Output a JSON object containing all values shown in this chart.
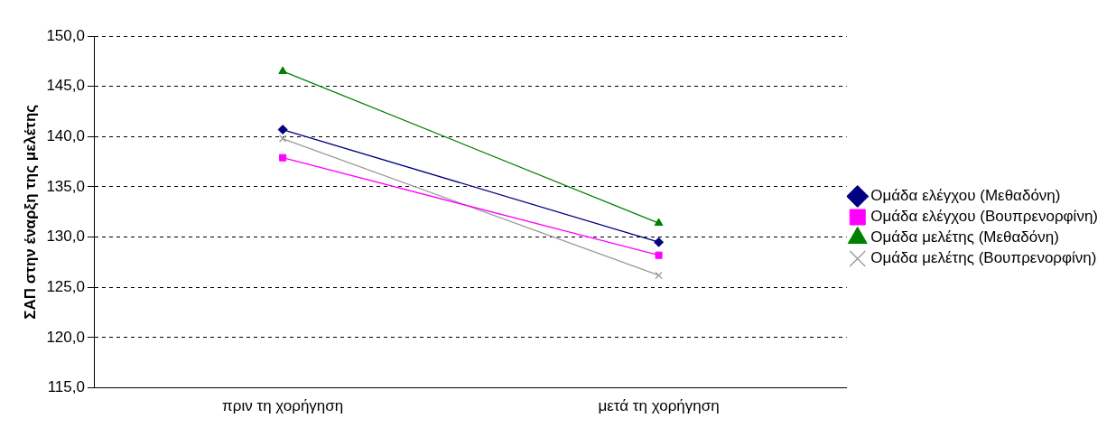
{
  "chart_data": {
    "type": "line",
    "ylabel": "ΣΑΠ στην έναρξη της μελέτης",
    "categories": [
      "πριν τη χορήγηση",
      "μετά τη χορήγηση"
    ],
    "series": [
      {
        "name": "Ομάδα ελέγχου (Μεθαδόνη)",
        "color": "#000080",
        "marker": "diamond",
        "values": [
          140.7,
          129.5
        ]
      },
      {
        "name": "Ομάδα ελέγχου (Βουπρενορφίνη)",
        "color": "#ff00ff",
        "marker": "square",
        "values": [
          137.9,
          128.2
        ]
      },
      {
        "name": "Ομάδα μελέτης (Μεθαδόνη)",
        "color": "#008000",
        "marker": "triangle",
        "values": [
          146.5,
          131.4
        ]
      },
      {
        "name": "Ομάδα μελέτης (Βουπρενορφίνη)",
        "color": "#999999",
        "marker": "cross",
        "values": [
          139.8,
          126.2
        ]
      }
    ],
    "ylim": [
      115,
      150
    ],
    "yticks": [
      {
        "value": 115,
        "label": "115,0"
      },
      {
        "value": 120,
        "label": "120,0"
      },
      {
        "value": 125,
        "label": "125,0"
      },
      {
        "value": 130,
        "label": "130,0"
      },
      {
        "value": 135,
        "label": "135,0"
      },
      {
        "value": 140,
        "label": "140,0"
      },
      {
        "value": 145,
        "label": "145,0"
      },
      {
        "value": 150,
        "label": "150,0"
      }
    ],
    "grid": "y",
    "legend": "right",
    "line_style": "solid"
  }
}
